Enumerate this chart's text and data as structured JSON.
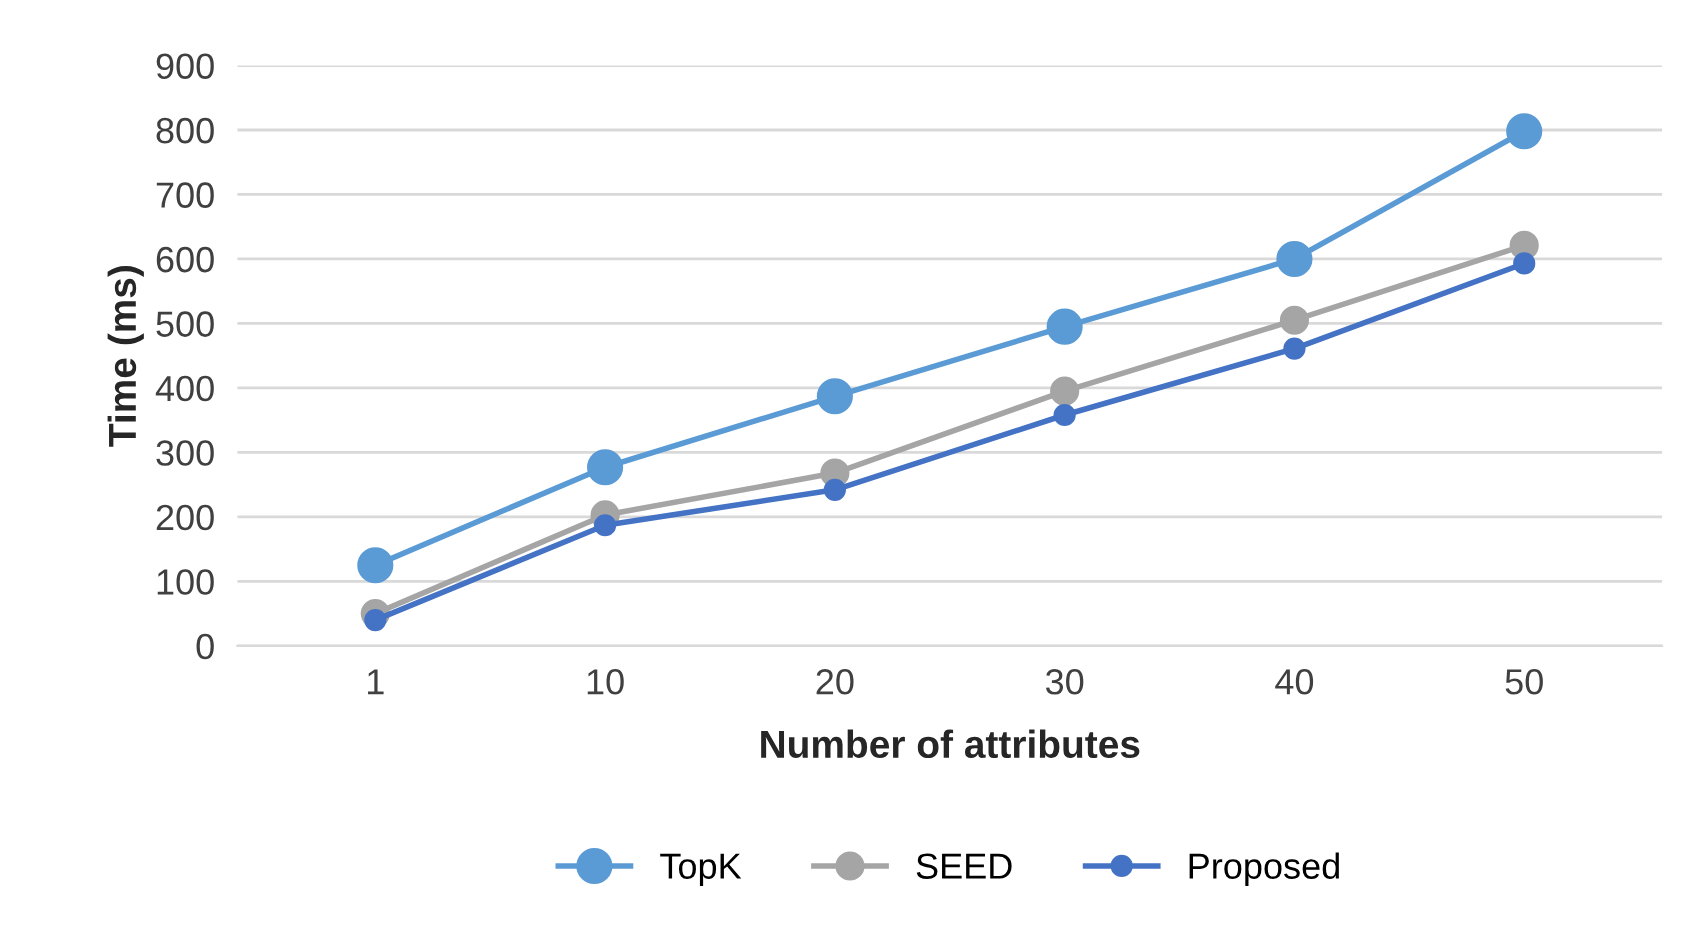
{
  "chart_data": {
    "type": "line",
    "xlabel": "Number of attributes",
    "ylabel": "Time (ms)",
    "categories": [
      "1",
      "10",
      "20",
      "30",
      "40",
      "50"
    ],
    "series": [
      {
        "name": "TopK",
        "color": "#5b9bd5",
        "values": [
          125,
          277,
          387,
          495,
          600,
          798
        ]
      },
      {
        "name": "SEED",
        "color": "#a5a5a5",
        "values": [
          50,
          203,
          268,
          395,
          505,
          621
        ]
      },
      {
        "name": "Proposed",
        "color": "#4472c4",
        "values": [
          40,
          187,
          242,
          358,
          461,
          593
        ]
      }
    ],
    "ylim": [
      0,
      900
    ],
    "yticks": [
      0,
      100,
      200,
      300,
      400,
      500,
      600,
      700,
      800,
      900
    ],
    "grid": "y",
    "legend": "bottom",
    "marker": "circle",
    "line_style": "solid"
  }
}
